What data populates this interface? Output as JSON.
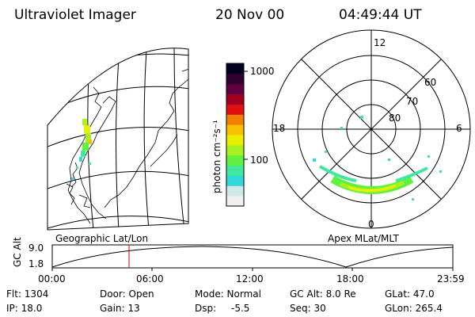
{
  "header": {
    "instrument": "Ultraviolet Imager",
    "date": "20 Nov 00",
    "time": "04:49:44 UT"
  },
  "colorbar": {
    "unit_label": "photon cm⁻²s⁻¹",
    "ticks": [
      "1000",
      "100"
    ]
  },
  "polar_plot": {
    "clock_labels": [
      "12",
      "18",
      "6",
      "0"
    ],
    "lat_labels": [
      "60",
      "70",
      "80"
    ]
  },
  "map_titles": {
    "left": "Geographic Lat/Lon",
    "right": "Apex MLat/MLT"
  },
  "altitude_plot": {
    "ylabel": "GC Alt",
    "y_ticks": [
      "9.0",
      "1.8"
    ],
    "x_ticks": [
      "00:00",
      "06:00",
      "12:00",
      "18:00",
      "23:59"
    ],
    "marker_time": "04:49:44"
  },
  "info": {
    "flt": "Flt: 1304",
    "ip": "IP: 18.0",
    "door": "Door: Open",
    "gain": "Gain: 13",
    "mode": "Mode: Normal",
    "dsp_label": "Dsp:",
    "dsp_value": "-5.5",
    "gc_alt": "GC Alt: 8.0 Re",
    "seq": "Seq: 30",
    "glat": "GLat:  47.0",
    "glon": "GLon: 265.4"
  },
  "colors": {
    "scale": [
      "#f0f0f0",
      "#d0e8e8",
      "#30d8d8",
      "#40e8a0",
      "#60f040",
      "#a8f020",
      "#e8f000",
      "#f8c000",
      "#f08000",
      "#e01010",
      "#a00020",
      "#600040",
      "#300030",
      "#000020"
    ],
    "marker": "#d00000"
  }
}
